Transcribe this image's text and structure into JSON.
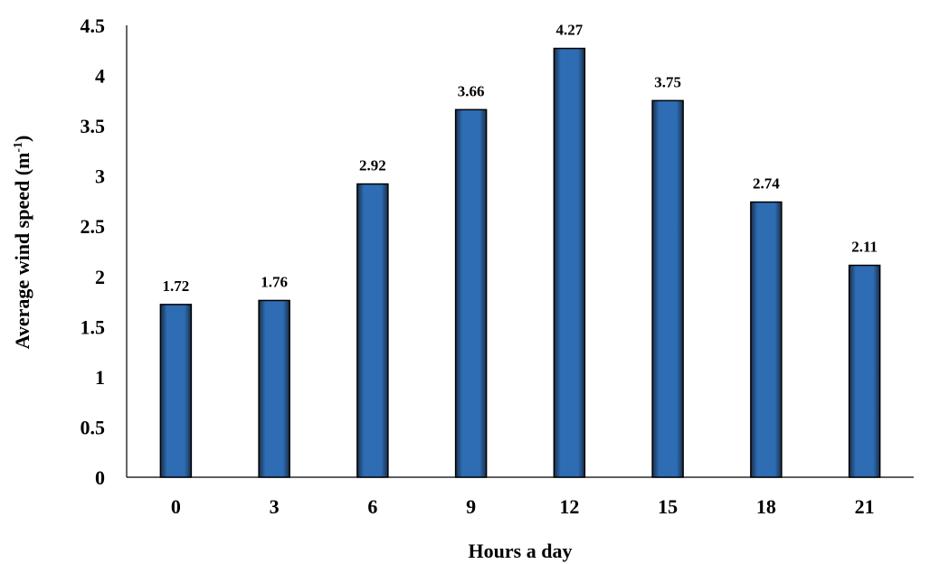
{
  "chart_data": {
    "type": "bar",
    "categories": [
      "0",
      "3",
      "6",
      "9",
      "12",
      "15",
      "18",
      "21"
    ],
    "values": [
      1.72,
      1.76,
      2.92,
      3.66,
      4.27,
      3.75,
      2.74,
      2.11
    ],
    "data_labels": [
      "1.72",
      "1.76",
      "2.92",
      "3.66",
      "4.27",
      "3.75",
      "2.74",
      "2.11"
    ],
    "title": "",
    "xlabel": "Hours a day",
    "ylabel_main": "Average wind speed (m",
    "ylabel_sup": "-1",
    "ylabel_end": ")",
    "ylim": [
      0,
      4.5
    ],
    "yticks": [
      "0",
      "0.5",
      "1",
      "1.5",
      "2",
      "2.5",
      "3",
      "3.5",
      "4",
      "4.5"
    ],
    "grid": false,
    "legend": "none",
    "bar_color": "#2e6db4",
    "bar_edge_color": "#000000"
  }
}
